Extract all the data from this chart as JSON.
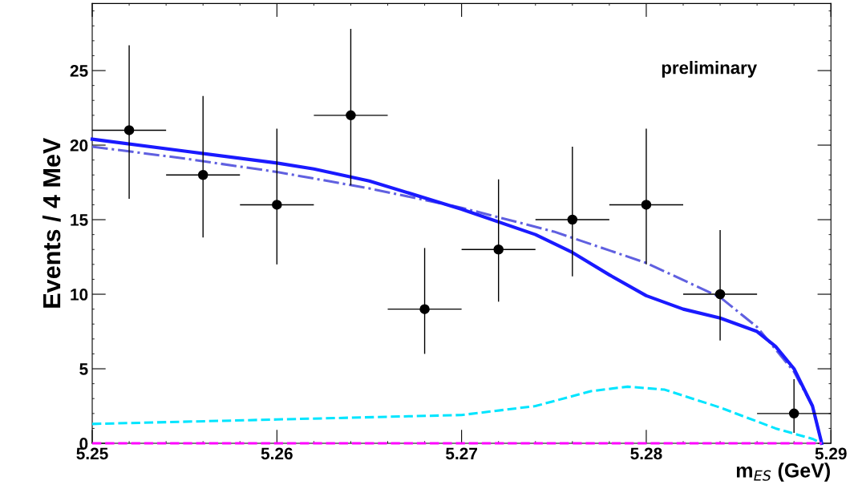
{
  "chart_data": {
    "type": "line",
    "xlabel": "m$_{ES}$ (GeV)",
    "ylabel": "Events / 4 MeV",
    "annotations": [
      {
        "text": "preliminary"
      }
    ],
    "xlim": [
      5.25,
      5.29
    ],
    "xticks": [
      5.25,
      5.26,
      5.27,
      5.28,
      5.29
    ],
    "ylim": [
      0,
      29.5
    ],
    "yticks": [
      0,
      5,
      10,
      15,
      20,
      25
    ],
    "grid": false,
    "legend": false,
    "series": [
      {
        "color": "#6060e0",
        "line_style": "dashdot",
        "x": [
          5.25,
          5.255,
          5.26,
          5.265,
          5.27,
          5.275,
          5.28,
          5.284,
          5.286,
          5.288,
          5.289,
          5.2895
        ],
        "values": [
          19.9,
          19.1,
          18.2,
          17.1,
          15.8,
          14.2,
          12.1,
          9.8,
          7.8,
          4.8,
          2.5,
          0
        ]
      },
      {
        "color": "#1a1aff",
        "line_style": "solid",
        "x": [
          5.25,
          5.255,
          5.26,
          5.262,
          5.265,
          5.27,
          5.274,
          5.276,
          5.278,
          5.28,
          5.282,
          5.284,
          5.286,
          5.287,
          5.288,
          5.289,
          5.2895
        ],
        "values": [
          20.4,
          19.6,
          18.8,
          18.4,
          17.6,
          15.7,
          14.0,
          12.8,
          11.3,
          9.9,
          9.0,
          8.4,
          7.5,
          6.5,
          5.0,
          2.5,
          0
        ]
      },
      {
        "color": "#00e5ff",
        "line_style": "dashed",
        "x": [
          5.25,
          5.26,
          5.27,
          5.274,
          5.277,
          5.279,
          5.281,
          5.284,
          5.287,
          5.289,
          5.2895
        ],
        "values": [
          1.3,
          1.6,
          1.9,
          2.5,
          3.5,
          3.8,
          3.6,
          2.4,
          1.0,
          0.3,
          0
        ]
      },
      {
        "color": "#ff00ff",
        "line_style": "dashed",
        "x": [
          5.25,
          5.2895
        ],
        "values": [
          0,
          0
        ]
      },
      {
        "type": "scatter",
        "color": "#000000",
        "marker": "circle",
        "x": [
          5.252,
          5.256,
          5.26,
          5.264,
          5.268,
          5.272,
          5.276,
          5.28,
          5.284,
          5.288
        ],
        "values": [
          21,
          18,
          16,
          22,
          9,
          13,
          15,
          16,
          10,
          2
        ],
        "errors": [
          [
            16.4,
            26.7
          ],
          [
            13.8,
            23.3
          ],
          [
            12.0,
            21.1
          ],
          [
            17.3,
            27.8
          ],
          [
            6.0,
            13.1
          ],
          [
            9.5,
            17.7
          ],
          [
            11.2,
            19.9
          ],
          [
            12.0,
            21.1
          ],
          [
            6.9,
            14.3
          ],
          [
            0.7,
            4.3
          ]
        ],
        "xerrors": [
          0.002,
          0.002,
          0.002,
          0.002,
          0.002,
          0.002,
          0.002,
          0.002,
          0.002,
          0.002
        ]
      }
    ]
  }
}
